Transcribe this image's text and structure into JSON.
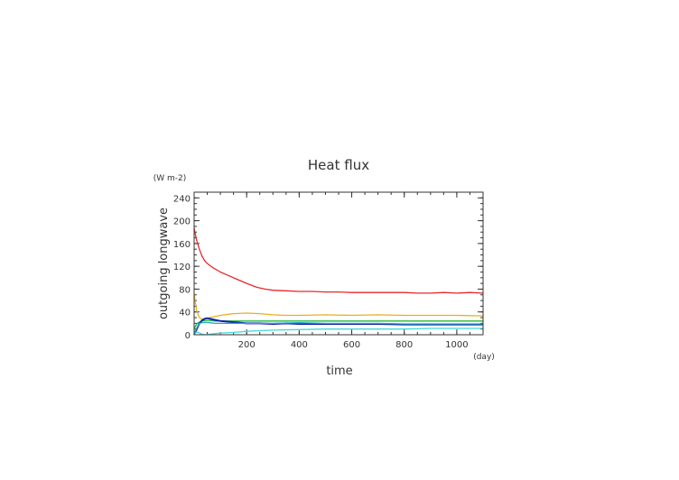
{
  "chart_data": {
    "type": "line",
    "title": "Heat flux",
    "xlabel": "time",
    "ylabel": "outgoing longwave",
    "x_unit": "(day)",
    "y_unit": "(W m-2)",
    "xlim": [
      0,
      1100
    ],
    "ylim": [
      0,
      250
    ],
    "xticks": [
      200,
      400,
      600,
      800,
      1000
    ],
    "yticks": [
      0,
      40,
      80,
      120,
      160,
      200,
      240
    ],
    "x_minor_step": 50,
    "y_minor_step": 10,
    "grid": false,
    "series": [
      {
        "color": "#e8282a",
        "x": [
          0,
          5,
          10,
          20,
          30,
          40,
          50,
          70,
          100,
          130,
          160,
          200,
          240,
          270,
          300,
          350,
          400,
          450,
          500,
          550,
          600,
          650,
          700,
          750,
          800,
          850,
          900,
          950,
          1000,
          1050,
          1100
        ],
        "values": [
          187,
          175,
          165,
          150,
          138,
          130,
          125,
          118,
          110,
          104,
          98,
          90,
          83,
          80,
          78,
          77,
          76,
          76,
          75,
          75,
          74,
          74,
          74,
          74,
          74,
          73,
          73,
          74,
          73,
          74,
          73
        ]
      },
      {
        "color": "#e8b020",
        "x": [
          0,
          5,
          10,
          15,
          20,
          30,
          40,
          60,
          80,
          100,
          150,
          200,
          250,
          300,
          350,
          400,
          500,
          600,
          700,
          800,
          900,
          1000,
          1100
        ],
        "values": [
          72,
          55,
          42,
          35,
          30,
          27,
          28,
          30,
          32,
          34,
          37,
          38,
          37,
          35,
          34,
          34,
          35,
          34,
          35,
          34,
          34,
          34,
          33
        ]
      },
      {
        "color": "#22bb33",
        "x": [
          0,
          5,
          10,
          15,
          20,
          30,
          40,
          60,
          80,
          100,
          150,
          200,
          300,
          400,
          500,
          600,
          700,
          800,
          900,
          1000,
          1100
        ],
        "values": [
          10,
          15,
          19,
          21,
          22,
          24,
          25,
          25,
          24,
          24,
          24,
          24,
          24,
          24,
          24,
          24,
          24,
          24,
          24,
          24,
          24
        ]
      },
      {
        "color": "#1522aa",
        "x": [
          0,
          5,
          10,
          15,
          20,
          30,
          40,
          50,
          60,
          80,
          100,
          150,
          200,
          250,
          300,
          350,
          400,
          500,
          600,
          700,
          800,
          900,
          1000,
          1100
        ],
        "values": [
          0,
          5,
          10,
          15,
          20,
          25,
          28,
          29,
          28,
          26,
          24,
          22,
          20,
          20,
          19,
          20,
          19,
          19,
          19,
          19,
          18,
          18,
          18,
          18
        ]
      },
      {
        "color": "#20a8c8",
        "x": [
          0,
          10,
          20,
          40,
          60,
          80,
          100,
          150,
          200,
          300,
          400,
          500,
          600,
          700,
          800,
          900,
          1000,
          1100
        ],
        "values": [
          2,
          12,
          20,
          22,
          21,
          20,
          20,
          20,
          20,
          20,
          21,
          20,
          20,
          20,
          19,
          19,
          19,
          19
        ]
      },
      {
        "color": "#44d8d8",
        "x": [
          0,
          10,
          20,
          30,
          40,
          60,
          80,
          100,
          150,
          200,
          300,
          400,
          500,
          600,
          700,
          800,
          900,
          1000,
          1100
        ],
        "values": [
          0,
          5,
          3,
          1,
          0,
          1,
          2,
          3,
          4,
          6,
          8,
          9,
          10,
          10,
          10,
          10,
          11,
          11,
          11
        ]
      }
    ]
  }
}
